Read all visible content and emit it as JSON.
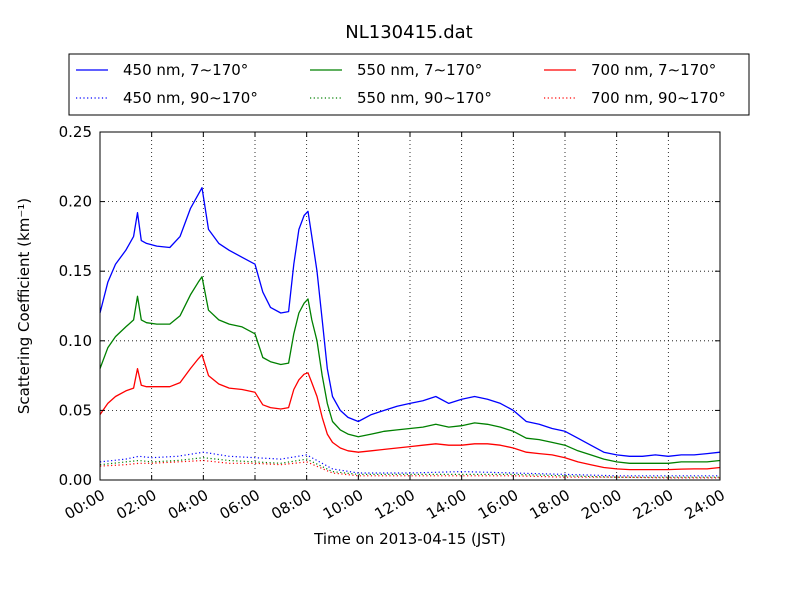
{
  "chart_data": {
    "type": "line",
    "title": "NL130415.dat",
    "xlabel": "Time on 2013-04-15 (JST)",
    "ylabel": "Scattering Coefficient (km⁻¹)",
    "xlim": [
      0,
      24
    ],
    "ylim": [
      0,
      0.25
    ],
    "grid": true,
    "legend_position": "top",
    "x_ticks": [
      "00:00",
      "02:00",
      "04:00",
      "06:00",
      "08:00",
      "10:00",
      "12:00",
      "14:00",
      "16:00",
      "18:00",
      "20:00",
      "22:00",
      "24:00"
    ],
    "y_ticks": [
      "0.00",
      "0.05",
      "0.10",
      "0.15",
      "0.20",
      "0.25"
    ],
    "series": [
      {
        "name": "450 nm, 7∼170°",
        "color": "#0000ff",
        "style": "solid",
        "x": [
          0,
          0.3,
          0.6,
          1.0,
          1.3,
          1.45,
          1.6,
          1.8,
          2.2,
          2.7,
          3.1,
          3.5,
          3.8,
          3.95,
          4.2,
          4.6,
          5.0,
          5.5,
          6.0,
          6.3,
          6.6,
          7.0,
          7.3,
          7.5,
          7.7,
          7.9,
          8.05,
          8.2,
          8.4,
          8.6,
          8.8,
          9.0,
          9.3,
          9.6,
          10.0,
          10.5,
          11.0,
          11.5,
          12.0,
          12.5,
          13.0,
          13.5,
          14.0,
          14.5,
          15.0,
          15.5,
          16.0,
          16.5,
          17.0,
          17.5,
          18.0,
          18.5,
          19.0,
          19.5,
          20.0,
          20.5,
          21.0,
          21.5,
          22.0,
          22.5,
          23.0,
          23.5,
          24.0
        ],
        "values": [
          0.12,
          0.142,
          0.155,
          0.165,
          0.175,
          0.192,
          0.172,
          0.17,
          0.168,
          0.167,
          0.175,
          0.195,
          0.205,
          0.21,
          0.18,
          0.17,
          0.165,
          0.16,
          0.155,
          0.135,
          0.124,
          0.12,
          0.121,
          0.155,
          0.18,
          0.19,
          0.193,
          0.175,
          0.15,
          0.115,
          0.08,
          0.06,
          0.05,
          0.045,
          0.042,
          0.047,
          0.05,
          0.053,
          0.055,
          0.057,
          0.06,
          0.055,
          0.058,
          0.06,
          0.058,
          0.055,
          0.05,
          0.042,
          0.04,
          0.037,
          0.035,
          0.03,
          0.025,
          0.02,
          0.018,
          0.017,
          0.017,
          0.018,
          0.017,
          0.018,
          0.018,
          0.019,
          0.02
        ]
      },
      {
        "name": "550 nm, 7∼170°",
        "color": "#008000",
        "style": "solid",
        "x": [
          0,
          0.3,
          0.6,
          1.0,
          1.3,
          1.45,
          1.6,
          1.8,
          2.2,
          2.7,
          3.1,
          3.5,
          3.8,
          3.95,
          4.2,
          4.6,
          5.0,
          5.5,
          6.0,
          6.3,
          6.6,
          7.0,
          7.3,
          7.5,
          7.7,
          7.9,
          8.05,
          8.2,
          8.4,
          8.6,
          8.8,
          9.0,
          9.3,
          9.6,
          10.0,
          10.5,
          11.0,
          11.5,
          12.0,
          12.5,
          13.0,
          13.5,
          14.0,
          14.5,
          15.0,
          15.5,
          16.0,
          16.5,
          17.0,
          17.5,
          18.0,
          18.5,
          19.0,
          19.5,
          20.0,
          20.5,
          21.0,
          21.5,
          22.0,
          22.5,
          23.0,
          23.5,
          24.0
        ],
        "values": [
          0.08,
          0.095,
          0.103,
          0.11,
          0.115,
          0.132,
          0.115,
          0.113,
          0.112,
          0.112,
          0.118,
          0.133,
          0.142,
          0.146,
          0.122,
          0.115,
          0.112,
          0.11,
          0.105,
          0.088,
          0.085,
          0.083,
          0.084,
          0.105,
          0.12,
          0.127,
          0.13,
          0.115,
          0.1,
          0.075,
          0.055,
          0.042,
          0.036,
          0.033,
          0.031,
          0.033,
          0.035,
          0.036,
          0.037,
          0.038,
          0.04,
          0.038,
          0.039,
          0.041,
          0.04,
          0.038,
          0.035,
          0.03,
          0.029,
          0.027,
          0.025,
          0.021,
          0.018,
          0.015,
          0.013,
          0.012,
          0.012,
          0.012,
          0.012,
          0.013,
          0.013,
          0.013,
          0.014
        ]
      },
      {
        "name": "700 nm, 7∼170°",
        "color": "#ff0000",
        "style": "solid",
        "x": [
          0,
          0.3,
          0.6,
          1.0,
          1.3,
          1.45,
          1.6,
          1.8,
          2.2,
          2.7,
          3.1,
          3.5,
          3.8,
          3.95,
          4.2,
          4.6,
          5.0,
          5.5,
          6.0,
          6.3,
          6.6,
          7.0,
          7.3,
          7.5,
          7.7,
          7.9,
          8.05,
          8.2,
          8.4,
          8.6,
          8.8,
          9.0,
          9.3,
          9.6,
          10.0,
          10.5,
          11.0,
          11.5,
          12.0,
          12.5,
          13.0,
          13.5,
          14.0,
          14.5,
          15.0,
          15.5,
          16.0,
          16.5,
          17.0,
          17.5,
          18.0,
          18.5,
          19.0,
          19.5,
          20.0,
          20.5,
          21.0,
          21.5,
          22.0,
          22.5,
          23.0,
          23.5,
          24.0
        ],
        "values": [
          0.047,
          0.055,
          0.06,
          0.064,
          0.066,
          0.08,
          0.068,
          0.067,
          0.067,
          0.067,
          0.07,
          0.08,
          0.087,
          0.09,
          0.075,
          0.069,
          0.066,
          0.065,
          0.063,
          0.054,
          0.052,
          0.051,
          0.052,
          0.065,
          0.072,
          0.076,
          0.077,
          0.07,
          0.06,
          0.045,
          0.033,
          0.027,
          0.023,
          0.021,
          0.02,
          0.021,
          0.022,
          0.023,
          0.024,
          0.025,
          0.026,
          0.025,
          0.025,
          0.026,
          0.026,
          0.025,
          0.023,
          0.02,
          0.019,
          0.018,
          0.016,
          0.013,
          0.011,
          0.009,
          0.008,
          0.0075,
          0.0075,
          0.0075,
          0.0075,
          0.0078,
          0.008,
          0.008,
          0.009
        ]
      },
      {
        "name": "450 nm, 90∼170°",
        "color": "#0000ff",
        "style": "dotted",
        "x": [
          0,
          1,
          1.5,
          2,
          3,
          4,
          5,
          6,
          7,
          8,
          9,
          10,
          12,
          14,
          16,
          18,
          20,
          22,
          24
        ],
        "values": [
          0.013,
          0.015,
          0.017,
          0.016,
          0.017,
          0.02,
          0.017,
          0.016,
          0.015,
          0.018,
          0.008,
          0.005,
          0.005,
          0.006,
          0.005,
          0.004,
          0.003,
          0.003,
          0.003
        ]
      },
      {
        "name": "550 nm, 90∼170°",
        "color": "#008000",
        "style": "dotted",
        "x": [
          0,
          1,
          1.5,
          2,
          3,
          4,
          5,
          6,
          7,
          8,
          9,
          10,
          12,
          14,
          16,
          18,
          20,
          22,
          24
        ],
        "values": [
          0.011,
          0.013,
          0.014,
          0.013,
          0.014,
          0.016,
          0.014,
          0.013,
          0.012,
          0.015,
          0.006,
          0.004,
          0.004,
          0.004,
          0.004,
          0.003,
          0.002,
          0.002,
          0.002
        ]
      },
      {
        "name": "700 nm, 90∼170°",
        "color": "#ff0000",
        "style": "dotted",
        "x": [
          0,
          1,
          1.5,
          2,
          3,
          4,
          5,
          6,
          7,
          8,
          9,
          10,
          12,
          14,
          16,
          18,
          20,
          22,
          24
        ],
        "values": [
          0.01,
          0.011,
          0.012,
          0.012,
          0.013,
          0.014,
          0.012,
          0.012,
          0.011,
          0.013,
          0.005,
          0.003,
          0.003,
          0.003,
          0.003,
          0.002,
          0.002,
          0.0015,
          0.0015
        ]
      }
    ]
  }
}
